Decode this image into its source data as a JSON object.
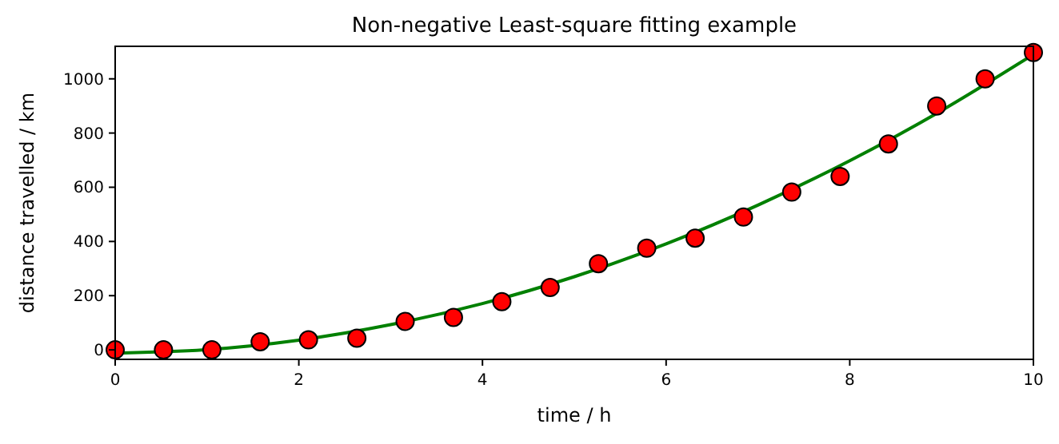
{
  "chart_data": {
    "type": "scatter",
    "title": "Non-negative Least-square fitting example",
    "xlabel": "time / h",
    "ylabel": "distance travelled / km",
    "xlim": [
      0,
      10
    ],
    "ylim": [
      -35,
      1120
    ],
    "xticks": [
      0,
      2,
      4,
      6,
      8,
      10
    ],
    "yticks": [
      0,
      200,
      400,
      600,
      800,
      1000
    ],
    "grid": false,
    "series": [
      {
        "marker": "circle",
        "color": "#ff0000",
        "x": [
          0,
          0.526,
          1.053,
          1.579,
          2.105,
          2.632,
          3.158,
          3.684,
          4.211,
          4.737,
          5.263,
          5.789,
          6.316,
          6.842,
          7.368,
          7.895,
          8.421,
          8.947,
          9.474,
          10
        ],
        "values": [
          0,
          0,
          0,
          30,
          37,
          43,
          105,
          120,
          178,
          230,
          318,
          375,
          412,
          490,
          582,
          640,
          760,
          900,
          1000,
          1097
        ]
      },
      {
        "type": "line",
        "color": "#008000",
        "line_style": "solid",
        "x": [
          0,
          1,
          2,
          3,
          4,
          5,
          6,
          7,
          8,
          9,
          10
        ],
        "values": [
          -12,
          1,
          36,
          93,
          171,
          270,
          391,
          534,
          698,
          883,
          1090
        ]
      }
    ]
  }
}
